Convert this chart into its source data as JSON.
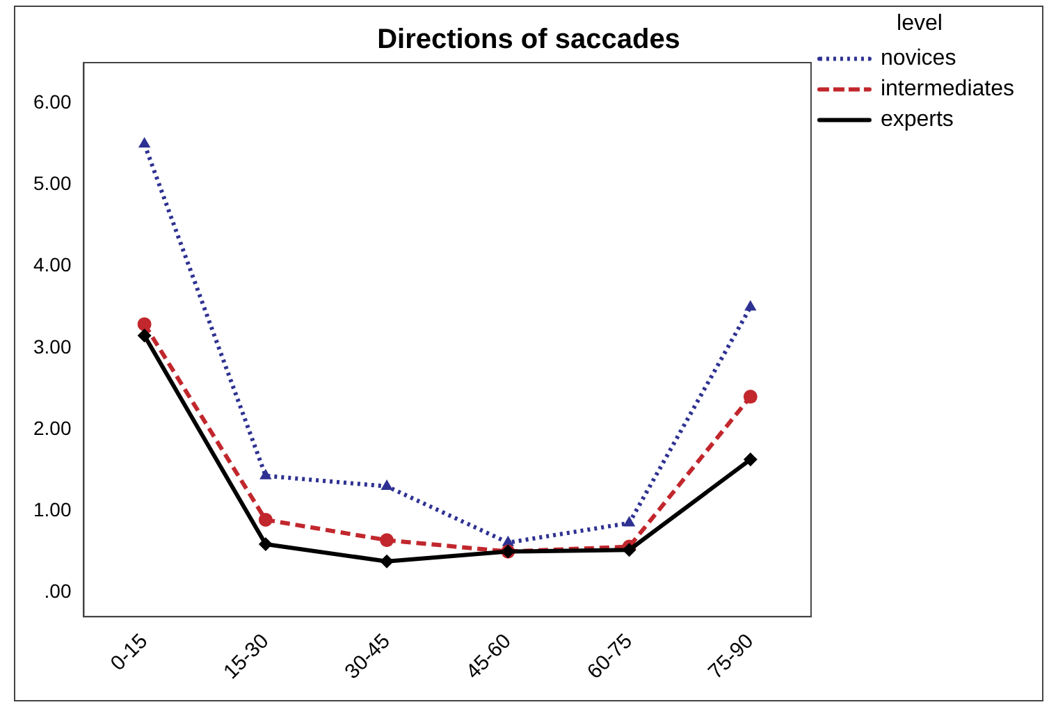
{
  "chart_data": {
    "type": "line",
    "title": "Directions of saccades",
    "legend_title": "level",
    "categories": [
      "0-15",
      "15-30",
      "30-45",
      "45-60",
      "60-75",
      "75-90"
    ],
    "series": [
      {
        "name": "novices",
        "color": "#2e3192",
        "values": [
          5.5,
          1.43,
          1.3,
          0.61,
          0.85,
          3.5
        ],
        "marker": "triangle",
        "line_style": "dotted"
      },
      {
        "name": "intermediates",
        "color": "#c1272d",
        "values": [
          3.29,
          0.89,
          0.64,
          0.5,
          0.56,
          2.4
        ],
        "marker": "circle",
        "line_style": "dashed"
      },
      {
        "name": "experts",
        "color": "#000000",
        "values": [
          3.15,
          0.59,
          0.38,
          0.5,
          0.52,
          1.63
        ],
        "marker": "diamond",
        "line_style": "solid"
      }
    ],
    "ylim": [
      -0.3,
      6.5
    ],
    "yticks": [
      {
        "value": 0,
        "label": ".00"
      },
      {
        "value": 1,
        "label": "1.00"
      },
      {
        "value": 2,
        "label": "2.00"
      },
      {
        "value": 3,
        "label": "3.00"
      },
      {
        "value": 4,
        "label": "4.00"
      },
      {
        "value": 5,
        "label": "5.00"
      },
      {
        "value": 6,
        "label": "6.00"
      }
    ],
    "grid": false,
    "legend": "right"
  }
}
